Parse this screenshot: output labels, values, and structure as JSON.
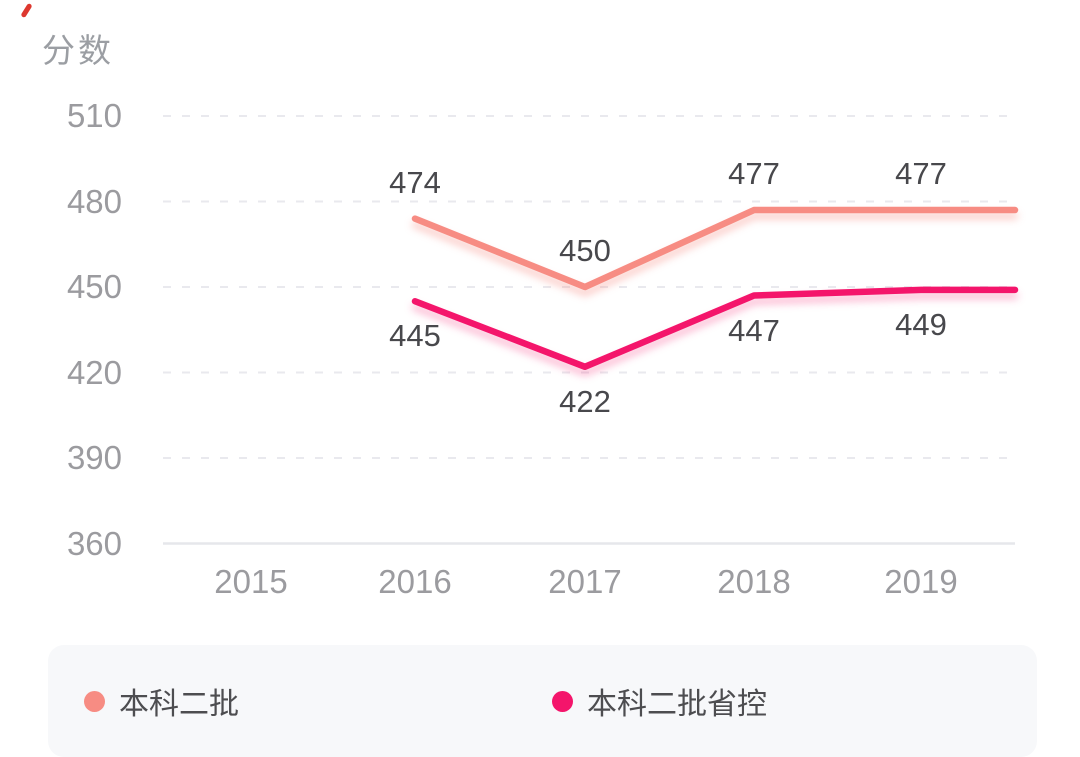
{
  "page": {
    "background": "#ffffff"
  },
  "chart_data": {
    "type": "line",
    "title": "分数",
    "categories": [
      "2015",
      "2016",
      "2017",
      "2018",
      "2019"
    ],
    "y_ticks": [
      510,
      480,
      450,
      420,
      390,
      360
    ],
    "ylim": [
      360,
      510
    ],
    "grid": "horizontal dashed, solid baseline at 360",
    "legend_position": "bottom",
    "series": [
      {
        "name": "本科二批",
        "color": "#F78C83",
        "shadow": "rgba(247,140,131,0.45)",
        "x": [
          "2016",
          "2017",
          "2018",
          "2019"
        ],
        "values": [
          474,
          450,
          477,
          477
        ],
        "labels": [
          "474",
          "450",
          "477",
          "477"
        ],
        "label_position": "above",
        "extends_to_right_edge": true
      },
      {
        "name": "本科二批省控",
        "color": "#F4156B",
        "shadow": "rgba(244,21,107,0.30)",
        "x": [
          "2016",
          "2017",
          "2018",
          "2019"
        ],
        "values": [
          445,
          422,
          447,
          449
        ],
        "labels": [
          "445",
          "422",
          "447",
          "449"
        ],
        "label_position": "below",
        "extends_to_right_edge": true
      }
    ]
  },
  "legend": {
    "items": [
      {
        "label": "本科二批",
        "color": "#F78C83"
      },
      {
        "label": "本科二批省控",
        "color": "#F4156B"
      }
    ],
    "background": "#F7F8FA"
  },
  "colors": {
    "axis_label": "#9B9B9F",
    "data_label": "#48484C",
    "gridline": "#E9E9EE",
    "baseline": "#E6E7EB",
    "accent_mark": "#DD382F"
  }
}
